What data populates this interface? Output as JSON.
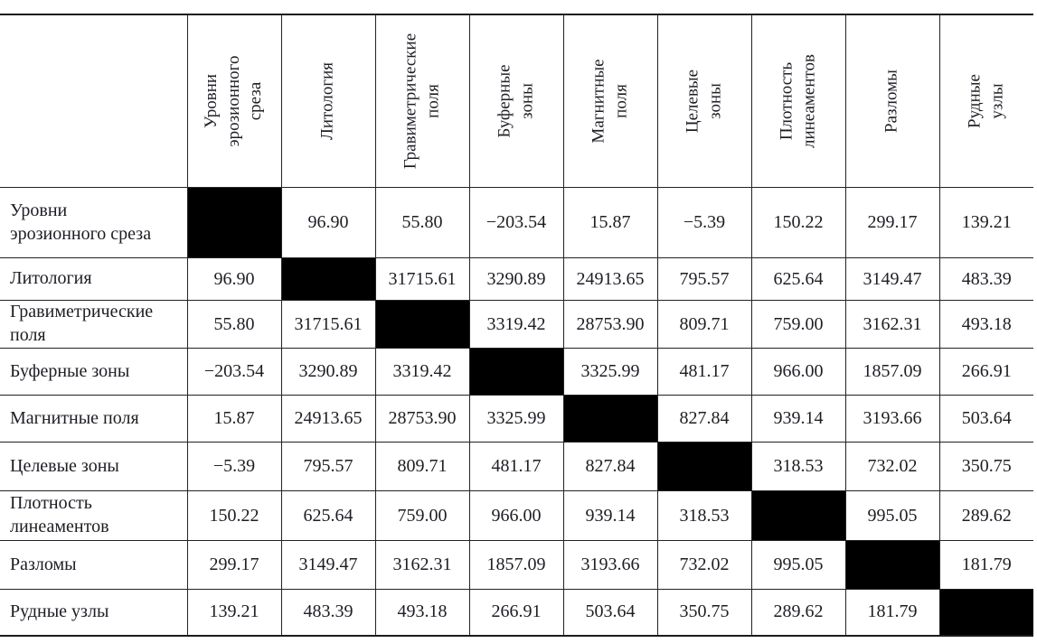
{
  "matrix": {
    "description_labels": {
      "column_headers": [
        {
          "lines": [
            "Уровни",
            "эрозионного",
            "среза"
          ]
        },
        {
          "lines": [
            "Литология"
          ]
        },
        {
          "lines": [
            "Гравиметрические",
            "поля"
          ]
        },
        {
          "lines": [
            "Буферные",
            "зоны"
          ]
        },
        {
          "lines": [
            "Магнитные",
            "поля"
          ]
        },
        {
          "lines": [
            "Целевые",
            "зоны"
          ]
        },
        {
          "lines": [
            "Плотность",
            "линеаментов"
          ]
        },
        {
          "lines": [
            "Разломы"
          ]
        },
        {
          "lines": [
            "Рудные узлы"
          ]
        }
      ]
    },
    "rows": [
      {
        "label_lines": [
          "Уровни",
          "эрозионного среза"
        ],
        "values": [
          null,
          "96.90",
          "55.80",
          "−203.54",
          "15.87",
          "−5.39",
          "150.22",
          "299.17",
          "139.21"
        ]
      },
      {
        "label_lines": [
          "Литология"
        ],
        "values": [
          "96.90",
          null,
          "31715.61",
          "3290.89",
          "24913.65",
          "795.57",
          "625.64",
          "3149.47",
          "483.39"
        ]
      },
      {
        "label_lines": [
          "Гравиметрические",
          "поля"
        ],
        "values": [
          "55.80",
          "31715.61",
          null,
          "3319.42",
          "28753.90",
          "809.71",
          "759.00",
          "3162.31",
          "493.18"
        ]
      },
      {
        "label_lines": [
          "Буферные зоны"
        ],
        "values": [
          "−203.54",
          "3290.89",
          "3319.42",
          null,
          "3325.99",
          "481.17",
          "966.00",
          "1857.09",
          "266.91"
        ]
      },
      {
        "label_lines": [
          "Магнитные поля"
        ],
        "values": [
          "15.87",
          "24913.65",
          "28753.90",
          "3325.99",
          null,
          "827.84",
          "939.14",
          "3193.66",
          "503.64"
        ]
      },
      {
        "label_lines": [
          "Целевые зоны"
        ],
        "values": [
          "−5.39",
          "795.57",
          "809.71",
          "481.17",
          "827.84",
          null,
          "318.53",
          "732.02",
          "350.75"
        ]
      },
      {
        "label_lines": [
          "Плотность",
          "линеаментов"
        ],
        "values": [
          "150.22",
          "625.64",
          "759.00",
          "966.00",
          "939.14",
          "318.53",
          null,
          "995.05",
          "289.62"
        ]
      },
      {
        "label_lines": [
          "Разломы"
        ],
        "values": [
          "299.17",
          "3149.47",
          "3162.31",
          "1857.09",
          "3193.66",
          "732.02",
          "995.05",
          null,
          "181.79"
        ]
      },
      {
        "label_lines": [
          "Рудные узлы"
        ],
        "values": [
          "139.21",
          "483.39",
          "493.18",
          "266.91",
          "503.64",
          "350.75",
          "289.62",
          "181.79",
          null
        ]
      }
    ],
    "diagonal_fill_color": "#000000",
    "text_color": "#1d1d24",
    "line_color": "#222226",
    "background_color": "#ffffff"
  }
}
